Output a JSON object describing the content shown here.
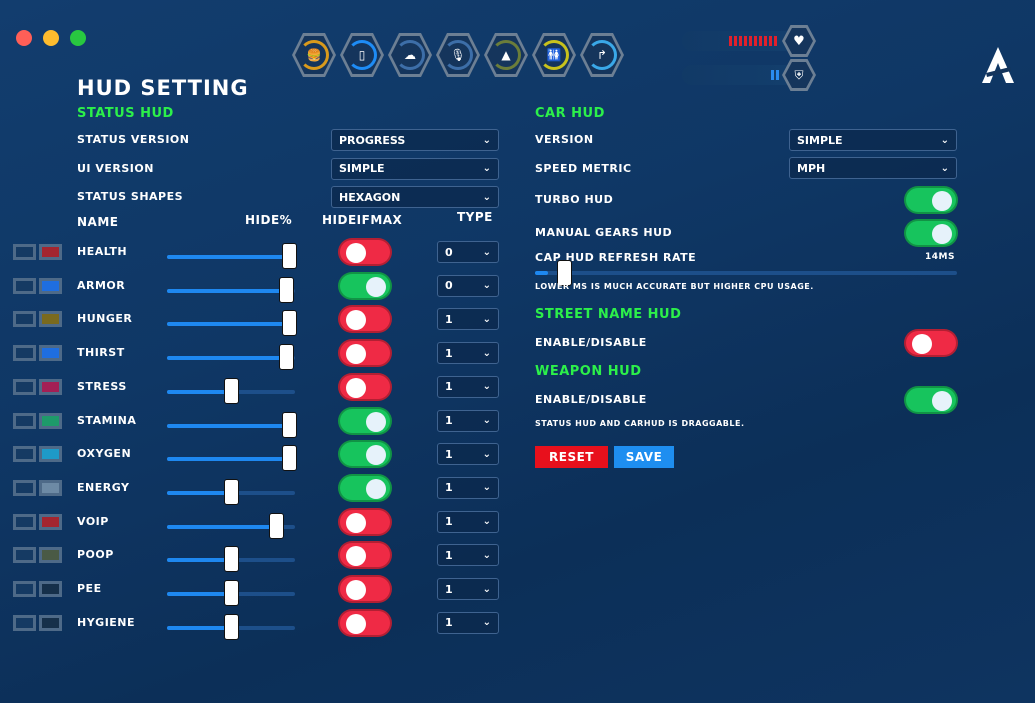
{
  "window": {
    "dots": [
      "#ff5f57",
      "#febc2e",
      "#28c840"
    ]
  },
  "top_hud": {
    "icons": [
      {
        "name": "burger",
        "glyph": "🍔",
        "color": "#d99a1c"
      },
      {
        "name": "cup",
        "glyph": "▯",
        "color": "#1e8cf5"
      },
      {
        "name": "brain",
        "glyph": "☁",
        "color": "#3d6ea8"
      },
      {
        "name": "microphone",
        "glyph": "🎙",
        "color": "#3d6ea8"
      },
      {
        "name": "poop",
        "glyph": "▲",
        "color": "#6b7d3a"
      },
      {
        "name": "restroom",
        "glyph": "🚻",
        "color": "#c8c21c"
      },
      {
        "name": "shower",
        "glyph": "↱",
        "color": "#3aa8e8"
      }
    ],
    "health_bar": 0.45,
    "armor_bar": 0.1
  },
  "title": "HUD SETTING",
  "status_hud": {
    "heading": "STATUS HUD",
    "fields": [
      {
        "label": "STATUS VERSION",
        "value": "PROGRESS"
      },
      {
        "label": "UI VERSION",
        "value": "SIMPLE"
      },
      {
        "label": "STATUS SHAPES",
        "value": "HEXAGON"
      }
    ],
    "columns": {
      "name": "NAME",
      "hide": "HIDE%",
      "hideifmax": "HIDEIFMAX",
      "type": "TYPE"
    },
    "rows": [
      {
        "name": "HEALTH",
        "color": "#a3252f",
        "hide": 95,
        "hideifmax": false,
        "type": "0"
      },
      {
        "name": "ARMOR",
        "color": "#1f6ee0",
        "hide": 93,
        "hideifmax": true,
        "type": "0"
      },
      {
        "name": "HUNGER",
        "color": "#7a6a1e",
        "hide": 95,
        "hideifmax": false,
        "type": "1"
      },
      {
        "name": "THIRST",
        "color": "#1f6ee0",
        "hide": 93,
        "hideifmax": false,
        "type": "1"
      },
      {
        "name": "STRESS",
        "color": "#a31f55",
        "hide": 50,
        "hideifmax": false,
        "type": "1"
      },
      {
        "name": "STAMINA",
        "color": "#1e9a6a",
        "hide": 95,
        "hideifmax": true,
        "type": "1"
      },
      {
        "name": "OXYGEN",
        "color": "#1e9ac8",
        "hide": 95,
        "hideifmax": true,
        "type": "1"
      },
      {
        "name": "ENERGY",
        "color": "#6d8aa5",
        "hide": 50,
        "hideifmax": true,
        "type": "1"
      },
      {
        "name": "VOIP",
        "color": "#a3252f",
        "hide": 85,
        "hideifmax": false,
        "type": "1"
      },
      {
        "name": "POOP",
        "color": "#4a5a45",
        "hide": 50,
        "hideifmax": false,
        "type": "1"
      },
      {
        "name": "PEE",
        "color": "#16304a",
        "hide": 50,
        "hideifmax": false,
        "type": "1"
      },
      {
        "name": "HYGIENE",
        "color": "#16304a",
        "hide": 50,
        "hideifmax": false,
        "type": "1"
      }
    ]
  },
  "car_hud": {
    "heading": "CAR HUD",
    "version_label": "VERSION",
    "version_value": "SIMPLE",
    "speed_label": "SPEED METRIC",
    "speed_value": "MPH",
    "turbo_label": "TURBO HUD",
    "turbo_on": true,
    "gears_label": "MANUAL GEARS HUD",
    "gears_on": true,
    "refresh_label": "CAP HUD REFRESH RATE",
    "refresh_value": "14MS",
    "refresh_fraction": 0.03,
    "refresh_note": "LOWER MS IS MUCH ACCURATE BUT HIGHER CPU USAGE."
  },
  "street_hud": {
    "heading": "STREET NAME HUD",
    "label": "ENABLE/DISABLE",
    "on": false
  },
  "weapon_hud": {
    "heading": "WEAPON HUD",
    "label": "ENABLE/DISABLE",
    "on": true
  },
  "drag_note": "STATUS HUD AND CARHUD IS DRAGGABLE.",
  "buttons": {
    "reset": "RESET",
    "save": "SAVE"
  }
}
